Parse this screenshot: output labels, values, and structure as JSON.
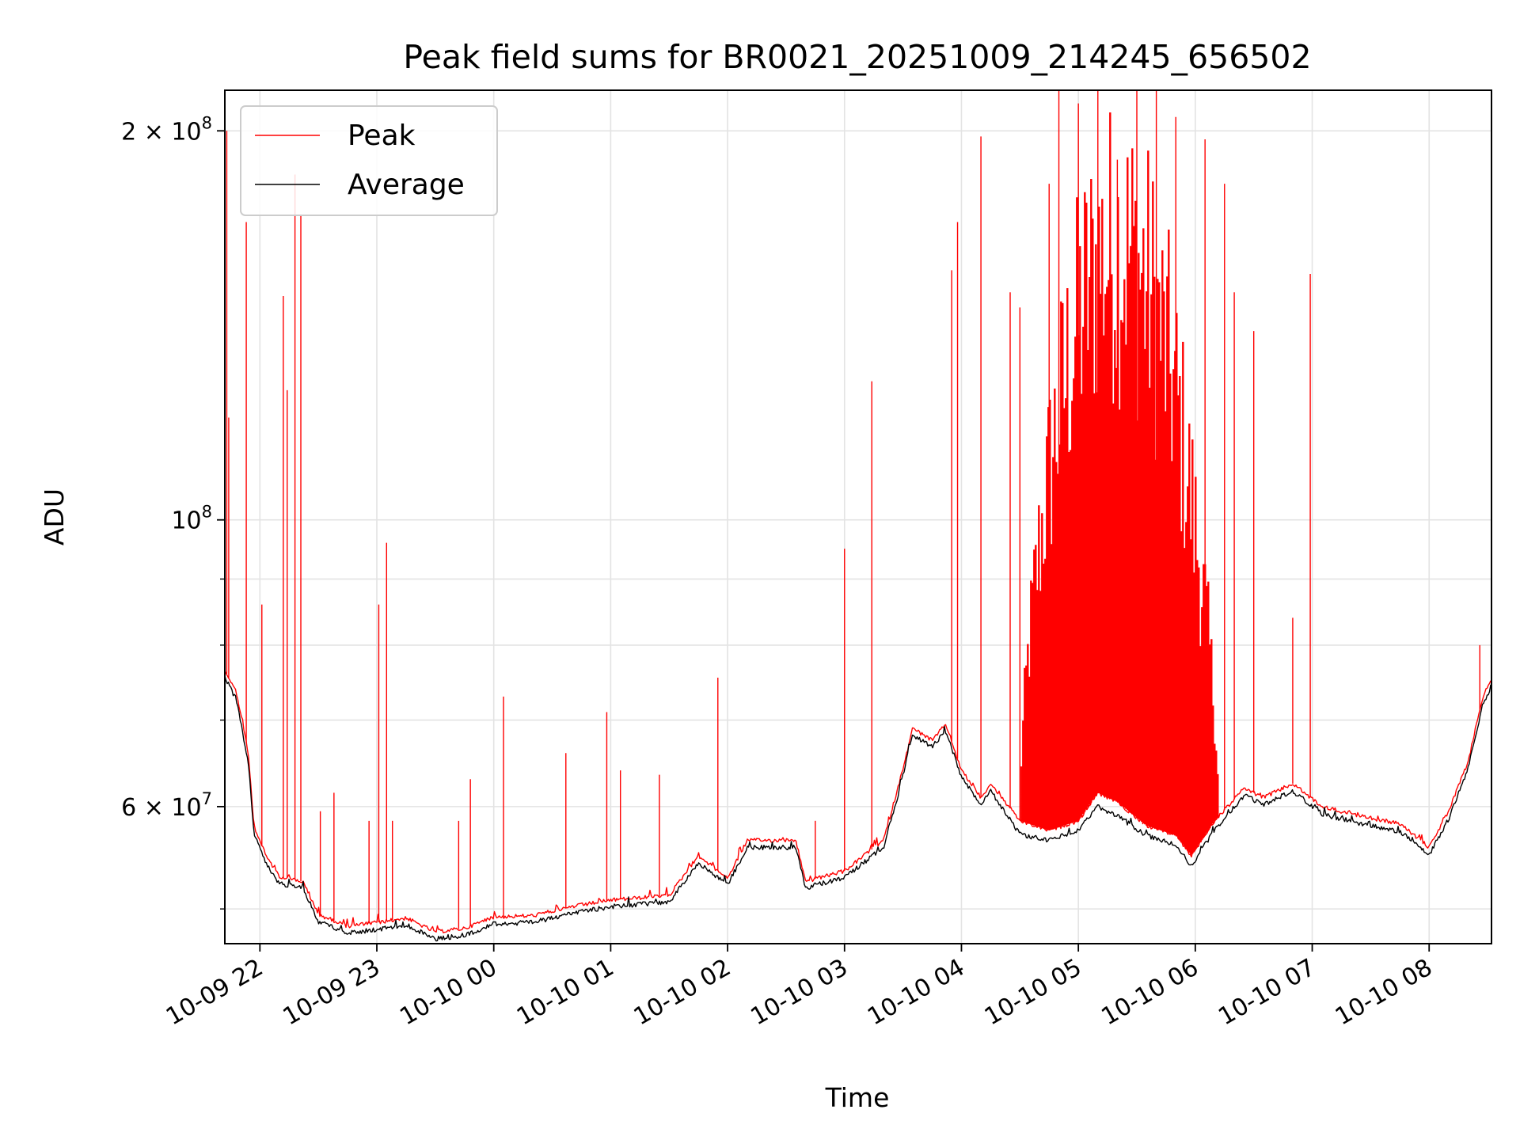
{
  "chart_data": {
    "type": "line",
    "title": "Peak field sums for BR0021_20251009_214245_656502",
    "xlabel": "Time",
    "ylabel": "ADU",
    "yscale": "log",
    "ylim": [
      47000000,
      215000000
    ],
    "xlim": [
      "2025-10-09 21:42",
      "2025-10-10 08:32"
    ],
    "grid": true,
    "legend_placement": "upper-left",
    "x_ticks": [
      {
        "time": "2025-10-09 22:00",
        "label": "10-09 22"
      },
      {
        "time": "2025-10-09 23:00",
        "label": "10-09 23"
      },
      {
        "time": "2025-10-10 00:00",
        "label": "10-10 00"
      },
      {
        "time": "2025-10-10 01:00",
        "label": "10-10 01"
      },
      {
        "time": "2025-10-10 02:00",
        "label": "10-10 02"
      },
      {
        "time": "2025-10-10 03:00",
        "label": "10-10 03"
      },
      {
        "time": "2025-10-10 04:00",
        "label": "10-10 04"
      },
      {
        "time": "2025-10-10 05:00",
        "label": "10-10 05"
      },
      {
        "time": "2025-10-10 06:00",
        "label": "10-10 06"
      },
      {
        "time": "2025-10-10 07:00",
        "label": "10-10 07"
      },
      {
        "time": "2025-10-10 08:00",
        "label": "10-10 08"
      }
    ],
    "y_major_ticks": [
      {
        "value": 100000000,
        "base": "10",
        "exp": "8"
      },
      {
        "value": 200000000,
        "base": "2 × 10",
        "exp": "8"
      },
      {
        "value": 60000000,
        "base": "6 × 10",
        "exp": "7"
      }
    ],
    "y_minor_ticks": [
      50000000,
      70000000,
      80000000,
      90000000
    ],
    "series": [
      {
        "name": "Peak",
        "color": "#ff0000",
        "baseline": [
          [
            "2025-10-09 21:42",
            76500000
          ],
          [
            "2025-10-09 21:48",
            73500000
          ],
          [
            "2025-10-09 21:54",
            66000000
          ],
          [
            "2025-10-09 21:57",
            58000000
          ],
          [
            "2025-10-09 22:03",
            55000000
          ],
          [
            "2025-10-09 22:10",
            53000000
          ],
          [
            "2025-10-09 22:22",
            52500000
          ],
          [
            "2025-10-09 22:30",
            49500000
          ],
          [
            "2025-10-09 22:45",
            48500000
          ],
          [
            "2025-10-09 23:00",
            48800000
          ],
          [
            "2025-10-09 23:15",
            49200000
          ],
          [
            "2025-10-09 23:30",
            48000000
          ],
          [
            "2025-10-09 23:45",
            48300000
          ],
          [
            "2025-10-10 00:00",
            49300000
          ],
          [
            "2025-10-10 00:20",
            49400000
          ],
          [
            "2025-10-10 00:40",
            50200000
          ],
          [
            "2025-10-10 01:00",
            50800000
          ],
          [
            "2025-10-10 01:30",
            51200000
          ],
          [
            "2025-10-10 01:45",
            55000000
          ],
          [
            "2025-10-10 02:00",
            52800000
          ],
          [
            "2025-10-10 02:10",
            56500000
          ],
          [
            "2025-10-10 02:35",
            56500000
          ],
          [
            "2025-10-10 02:40",
            52500000
          ],
          [
            "2025-10-10 03:00",
            53500000
          ],
          [
            "2025-10-10 03:20",
            56500000
          ],
          [
            "2025-10-10 03:28",
            62500000
          ],
          [
            "2025-10-10 03:35",
            69000000
          ],
          [
            "2025-10-10 03:45",
            67500000
          ],
          [
            "2025-10-10 03:52",
            69500000
          ],
          [
            "2025-10-10 04:00",
            64000000
          ],
          [
            "2025-10-10 04:10",
            61000000
          ],
          [
            "2025-10-10 04:15",
            62500000
          ],
          [
            "2025-10-10 04:30",
            58500000
          ],
          [
            "2025-10-10 04:45",
            57500000
          ],
          [
            "2025-10-10 05:00",
            58500000
          ],
          [
            "2025-10-10 05:10",
            61500000
          ],
          [
            "2025-10-10 05:20",
            60500000
          ],
          [
            "2025-10-10 05:35",
            58000000
          ],
          [
            "2025-10-10 05:50",
            57000000
          ],
          [
            "2025-10-10 05:58",
            55000000
          ],
          [
            "2025-10-10 06:10",
            58500000
          ],
          [
            "2025-10-10 06:25",
            62000000
          ],
          [
            "2025-10-10 06:35",
            61000000
          ],
          [
            "2025-10-10 06:50",
            62500000
          ],
          [
            "2025-10-10 07:05",
            60000000
          ],
          [
            "2025-10-10 07:25",
            59000000
          ],
          [
            "2025-10-10 07:45",
            58200000
          ],
          [
            "2025-10-10 08:00",
            55800000
          ],
          [
            "2025-10-10 08:10",
            59500000
          ],
          [
            "2025-10-10 08:20",
            65000000
          ],
          [
            "2025-10-10 08:27",
            72500000
          ],
          [
            "2025-10-10 08:32",
            75500000
          ]
        ],
        "spikes": [
          [
            "2025-10-09 21:43",
            200000000
          ],
          [
            "2025-10-09 21:44",
            120000000
          ],
          [
            "2025-10-09 21:53",
            170000000
          ],
          [
            "2025-10-09 22:01",
            86000000
          ],
          [
            "2025-10-09 22:12",
            149000000
          ],
          [
            "2025-10-09 22:14",
            126000000
          ],
          [
            "2025-10-09 22:18",
            185000000
          ],
          [
            "2025-10-09 22:21",
            172000000
          ],
          [
            "2025-10-09 22:31",
            59500000
          ],
          [
            "2025-10-09 22:38",
            61500000
          ],
          [
            "2025-10-09 22:56",
            58500000
          ],
          [
            "2025-10-09 23:01",
            86000000
          ],
          [
            "2025-10-09 23:05",
            96000000
          ],
          [
            "2025-10-09 23:08",
            58500000
          ],
          [
            "2025-10-09 23:42",
            58500000
          ],
          [
            "2025-10-09 23:48",
            63000000
          ],
          [
            "2025-10-10 00:05",
            73000000
          ],
          [
            "2025-10-10 00:37",
            66000000
          ],
          [
            "2025-10-10 00:58",
            71000000
          ],
          [
            "2025-10-10 01:05",
            64000000
          ],
          [
            "2025-10-10 01:25",
            63500000
          ],
          [
            "2025-10-10 01:55",
            75500000
          ],
          [
            "2025-10-10 02:45",
            58500000
          ],
          [
            "2025-10-10 03:00",
            95000000
          ],
          [
            "2025-10-10 03:14",
            128000000
          ],
          [
            "2025-10-10 03:55",
            156000000
          ],
          [
            "2025-10-10 03:58",
            170000000
          ],
          [
            "2025-10-10 04:10",
            198000000
          ],
          [
            "2025-10-10 04:25",
            150000000
          ],
          [
            "2025-10-10 04:30",
            146000000
          ],
          [
            "2025-10-10 04:45",
            182000000
          ],
          [
            "2025-10-10 04:50",
            215000000
          ],
          [
            "2025-10-10 05:00",
            210000000
          ],
          [
            "2025-10-10 05:10",
            215000000
          ],
          [
            "2025-10-10 05:20",
            190000000
          ],
          [
            "2025-10-10 05:30",
            215000000
          ],
          [
            "2025-10-10 05:40",
            215000000
          ],
          [
            "2025-10-10 05:50",
            205000000
          ],
          [
            "2025-10-10 06:05",
            197000000
          ],
          [
            "2025-10-10 06:15",
            182000000
          ],
          [
            "2025-10-10 06:20",
            150000000
          ],
          [
            "2025-10-10 06:30",
            140000000
          ],
          [
            "2025-10-10 06:50",
            84000000
          ],
          [
            "2025-10-10 06:59",
            155000000
          ],
          [
            "2025-10-10 08:26",
            80000000
          ]
        ],
        "dense_region": [
          "2025-10-10 04:30",
          "2025-10-10 06:12"
        ],
        "dense_region_max": 215000000
      },
      {
        "name": "Average",
        "color": "#000000",
        "baseline": [
          [
            "2025-10-09 21:42",
            75500000
          ],
          [
            "2025-10-09 21:48",
            72500000
          ],
          [
            "2025-10-09 21:54",
            65000000
          ],
          [
            "2025-10-09 21:57",
            57200000
          ],
          [
            "2025-10-09 22:03",
            54200000
          ],
          [
            "2025-10-09 22:10",
            52300000
          ],
          [
            "2025-10-09 22:22",
            52000000
          ],
          [
            "2025-10-09 22:30",
            48900000
          ],
          [
            "2025-10-09 22:45",
            47900000
          ],
          [
            "2025-10-09 23:00",
            48200000
          ],
          [
            "2025-10-09 23:15",
            48600000
          ],
          [
            "2025-10-09 23:30",
            47400000
          ],
          [
            "2025-10-09 23:45",
            47700000
          ],
          [
            "2025-10-10 00:00",
            48700000
          ],
          [
            "2025-10-10 00:20",
            48800000
          ],
          [
            "2025-10-10 00:40",
            49600000
          ],
          [
            "2025-10-10 01:00",
            50200000
          ],
          [
            "2025-10-10 01:30",
            50600000
          ],
          [
            "2025-10-10 01:45",
            54300000
          ],
          [
            "2025-10-10 02:00",
            52200000
          ],
          [
            "2025-10-10 02:10",
            55800000
          ],
          [
            "2025-10-10 02:35",
            55800000
          ],
          [
            "2025-10-10 02:40",
            51900000
          ],
          [
            "2025-10-10 03:00",
            52900000
          ],
          [
            "2025-10-10 03:20",
            55800000
          ],
          [
            "2025-10-10 03:28",
            61700000
          ],
          [
            "2025-10-10 03:35",
            68200000
          ],
          [
            "2025-10-10 03:45",
            66700000
          ],
          [
            "2025-10-10 03:52",
            68700000
          ],
          [
            "2025-10-10 04:00",
            63200000
          ],
          [
            "2025-10-10 04:10",
            60200000
          ],
          [
            "2025-10-10 04:15",
            61700000
          ],
          [
            "2025-10-10 04:30",
            57100000
          ],
          [
            "2025-10-10 04:45",
            56500000
          ],
          [
            "2025-10-10 05:00",
            57500000
          ],
          [
            "2025-10-10 05:10",
            60000000
          ],
          [
            "2025-10-10 05:20",
            59000000
          ],
          [
            "2025-10-10 05:35",
            57000000
          ],
          [
            "2025-10-10 05:50",
            56000000
          ],
          [
            "2025-10-10 05:58",
            54000000
          ],
          [
            "2025-10-10 06:10",
            57600000
          ],
          [
            "2025-10-10 06:25",
            61200000
          ],
          [
            "2025-10-10 06:35",
            60200000
          ],
          [
            "2025-10-10 06:50",
            61700000
          ],
          [
            "2025-10-10 07:05",
            59200000
          ],
          [
            "2025-10-10 07:25",
            58200000
          ],
          [
            "2025-10-10 07:45",
            57400000
          ],
          [
            "2025-10-10 08:00",
            55000000
          ],
          [
            "2025-10-10 08:10",
            58700000
          ],
          [
            "2025-10-10 08:20",
            64200000
          ],
          [
            "2025-10-10 08:27",
            71500000
          ],
          [
            "2025-10-10 08:32",
            74500000
          ]
        ]
      }
    ]
  }
}
